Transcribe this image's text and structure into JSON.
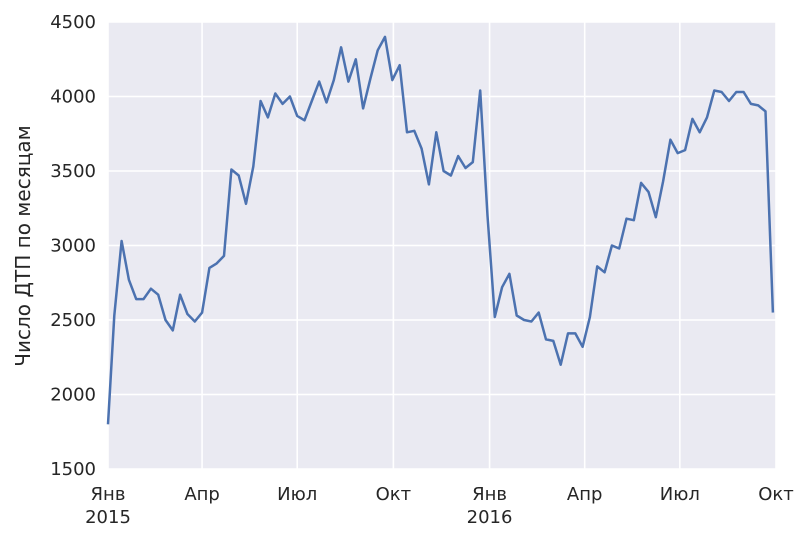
{
  "chart_data": {
    "type": "line",
    "title": "",
    "xlabel": "",
    "ylabel": "Число ДТП по месяцам",
    "ylim": [
      1500,
      4500
    ],
    "y_ticks": [
      1500,
      2000,
      2500,
      3000,
      3500,
      4000,
      4500
    ],
    "x_range": [
      "2015-01-01",
      "2016-10-01"
    ],
    "x_ticks": [
      {
        "date": "2015-01-01",
        "label": "Янв",
        "year": "2015"
      },
      {
        "date": "2015-04-01",
        "label": "Апр",
        "year": ""
      },
      {
        "date": "2015-07-01",
        "label": "Июл",
        "year": ""
      },
      {
        "date": "2015-10-01",
        "label": "Окт",
        "year": ""
      },
      {
        "date": "2016-01-01",
        "label": "Янв",
        "year": "2016"
      },
      {
        "date": "2016-04-01",
        "label": "Апр",
        "year": ""
      },
      {
        "date": "2016-07-01",
        "label": "Июл",
        "year": ""
      },
      {
        "date": "2016-10-01",
        "label": "Окт",
        "year": ""
      }
    ],
    "grid": true,
    "colors": {
      "background": "#EAEAF2",
      "grid": "#FFFFFF",
      "line": "#4C72B0"
    },
    "series": [
      {
        "name": "",
        "points": [
          [
            "2015-01-01",
            1800
          ],
          [
            "2015-01-07",
            2530
          ],
          [
            "2015-01-14",
            3030
          ],
          [
            "2015-01-21",
            2770
          ],
          [
            "2015-01-28",
            2640
          ],
          [
            "2015-02-04",
            2640
          ],
          [
            "2015-02-11",
            2710
          ],
          [
            "2015-02-18",
            2670
          ],
          [
            "2015-02-25",
            2500
          ],
          [
            "2015-03-04",
            2430
          ],
          [
            "2015-03-11",
            2670
          ],
          [
            "2015-03-18",
            2540
          ],
          [
            "2015-03-25",
            2490
          ],
          [
            "2015-04-01",
            2550
          ],
          [
            "2015-04-08",
            2850
          ],
          [
            "2015-04-15",
            2880
          ],
          [
            "2015-04-22",
            2930
          ],
          [
            "2015-04-29",
            3510
          ],
          [
            "2015-05-06",
            3470
          ],
          [
            "2015-05-13",
            3280
          ],
          [
            "2015-05-20",
            3530
          ],
          [
            "2015-05-27",
            3970
          ],
          [
            "2015-06-03",
            3860
          ],
          [
            "2015-06-10",
            4020
          ],
          [
            "2015-06-17",
            3950
          ],
          [
            "2015-06-24",
            4000
          ],
          [
            "2015-07-01",
            3870
          ],
          [
            "2015-07-08",
            3840
          ],
          [
            "2015-07-15",
            3970
          ],
          [
            "2015-07-22",
            4100
          ],
          [
            "2015-07-29",
            3960
          ],
          [
            "2015-08-05",
            4110
          ],
          [
            "2015-08-12",
            4330
          ],
          [
            "2015-08-19",
            4100
          ],
          [
            "2015-08-26",
            4250
          ],
          [
            "2015-09-02",
            3920
          ],
          [
            "2015-09-09",
            4120
          ],
          [
            "2015-09-16",
            4310
          ],
          [
            "2015-09-23",
            4400
          ],
          [
            "2015-09-30",
            4110
          ],
          [
            "2015-10-07",
            4210
          ],
          [
            "2015-10-14",
            3760
          ],
          [
            "2015-10-21",
            3770
          ],
          [
            "2015-10-28",
            3650
          ],
          [
            "2015-11-04",
            3410
          ],
          [
            "2015-11-11",
            3760
          ],
          [
            "2015-11-18",
            3500
          ],
          [
            "2015-11-25",
            3470
          ],
          [
            "2015-12-02",
            3600
          ],
          [
            "2015-12-09",
            3520
          ],
          [
            "2015-12-16",
            3560
          ],
          [
            "2015-12-23",
            4040
          ],
          [
            "2015-12-30",
            3200
          ],
          [
            "2016-01-06",
            2520
          ],
          [
            "2016-01-13",
            2720
          ],
          [
            "2016-01-20",
            2810
          ],
          [
            "2016-01-27",
            2530
          ],
          [
            "2016-02-03",
            2500
          ],
          [
            "2016-02-10",
            2490
          ],
          [
            "2016-02-17",
            2550
          ],
          [
            "2016-02-24",
            2370
          ],
          [
            "2016-03-02",
            2360
          ],
          [
            "2016-03-09",
            2200
          ],
          [
            "2016-03-16",
            2410
          ],
          [
            "2016-03-23",
            2410
          ],
          [
            "2016-03-30",
            2320
          ],
          [
            "2016-04-06",
            2520
          ],
          [
            "2016-04-13",
            2860
          ],
          [
            "2016-04-20",
            2820
          ],
          [
            "2016-04-27",
            3000
          ],
          [
            "2016-05-04",
            2980
          ],
          [
            "2016-05-11",
            3180
          ],
          [
            "2016-05-18",
            3170
          ],
          [
            "2016-05-25",
            3420
          ],
          [
            "2016-06-01",
            3360
          ],
          [
            "2016-06-08",
            3190
          ],
          [
            "2016-06-15",
            3430
          ],
          [
            "2016-06-22",
            3710
          ],
          [
            "2016-06-29",
            3620
          ],
          [
            "2016-07-06",
            3640
          ],
          [
            "2016-07-13",
            3850
          ],
          [
            "2016-07-20",
            3760
          ],
          [
            "2016-07-27",
            3860
          ],
          [
            "2016-08-03",
            4040
          ],
          [
            "2016-08-10",
            4030
          ],
          [
            "2016-08-17",
            3970
          ],
          [
            "2016-08-24",
            4030
          ],
          [
            "2016-08-31",
            4030
          ],
          [
            "2016-09-07",
            3950
          ],
          [
            "2016-09-14",
            3940
          ],
          [
            "2016-09-21",
            3900
          ],
          [
            "2016-09-28",
            2550
          ]
        ]
      }
    ]
  }
}
